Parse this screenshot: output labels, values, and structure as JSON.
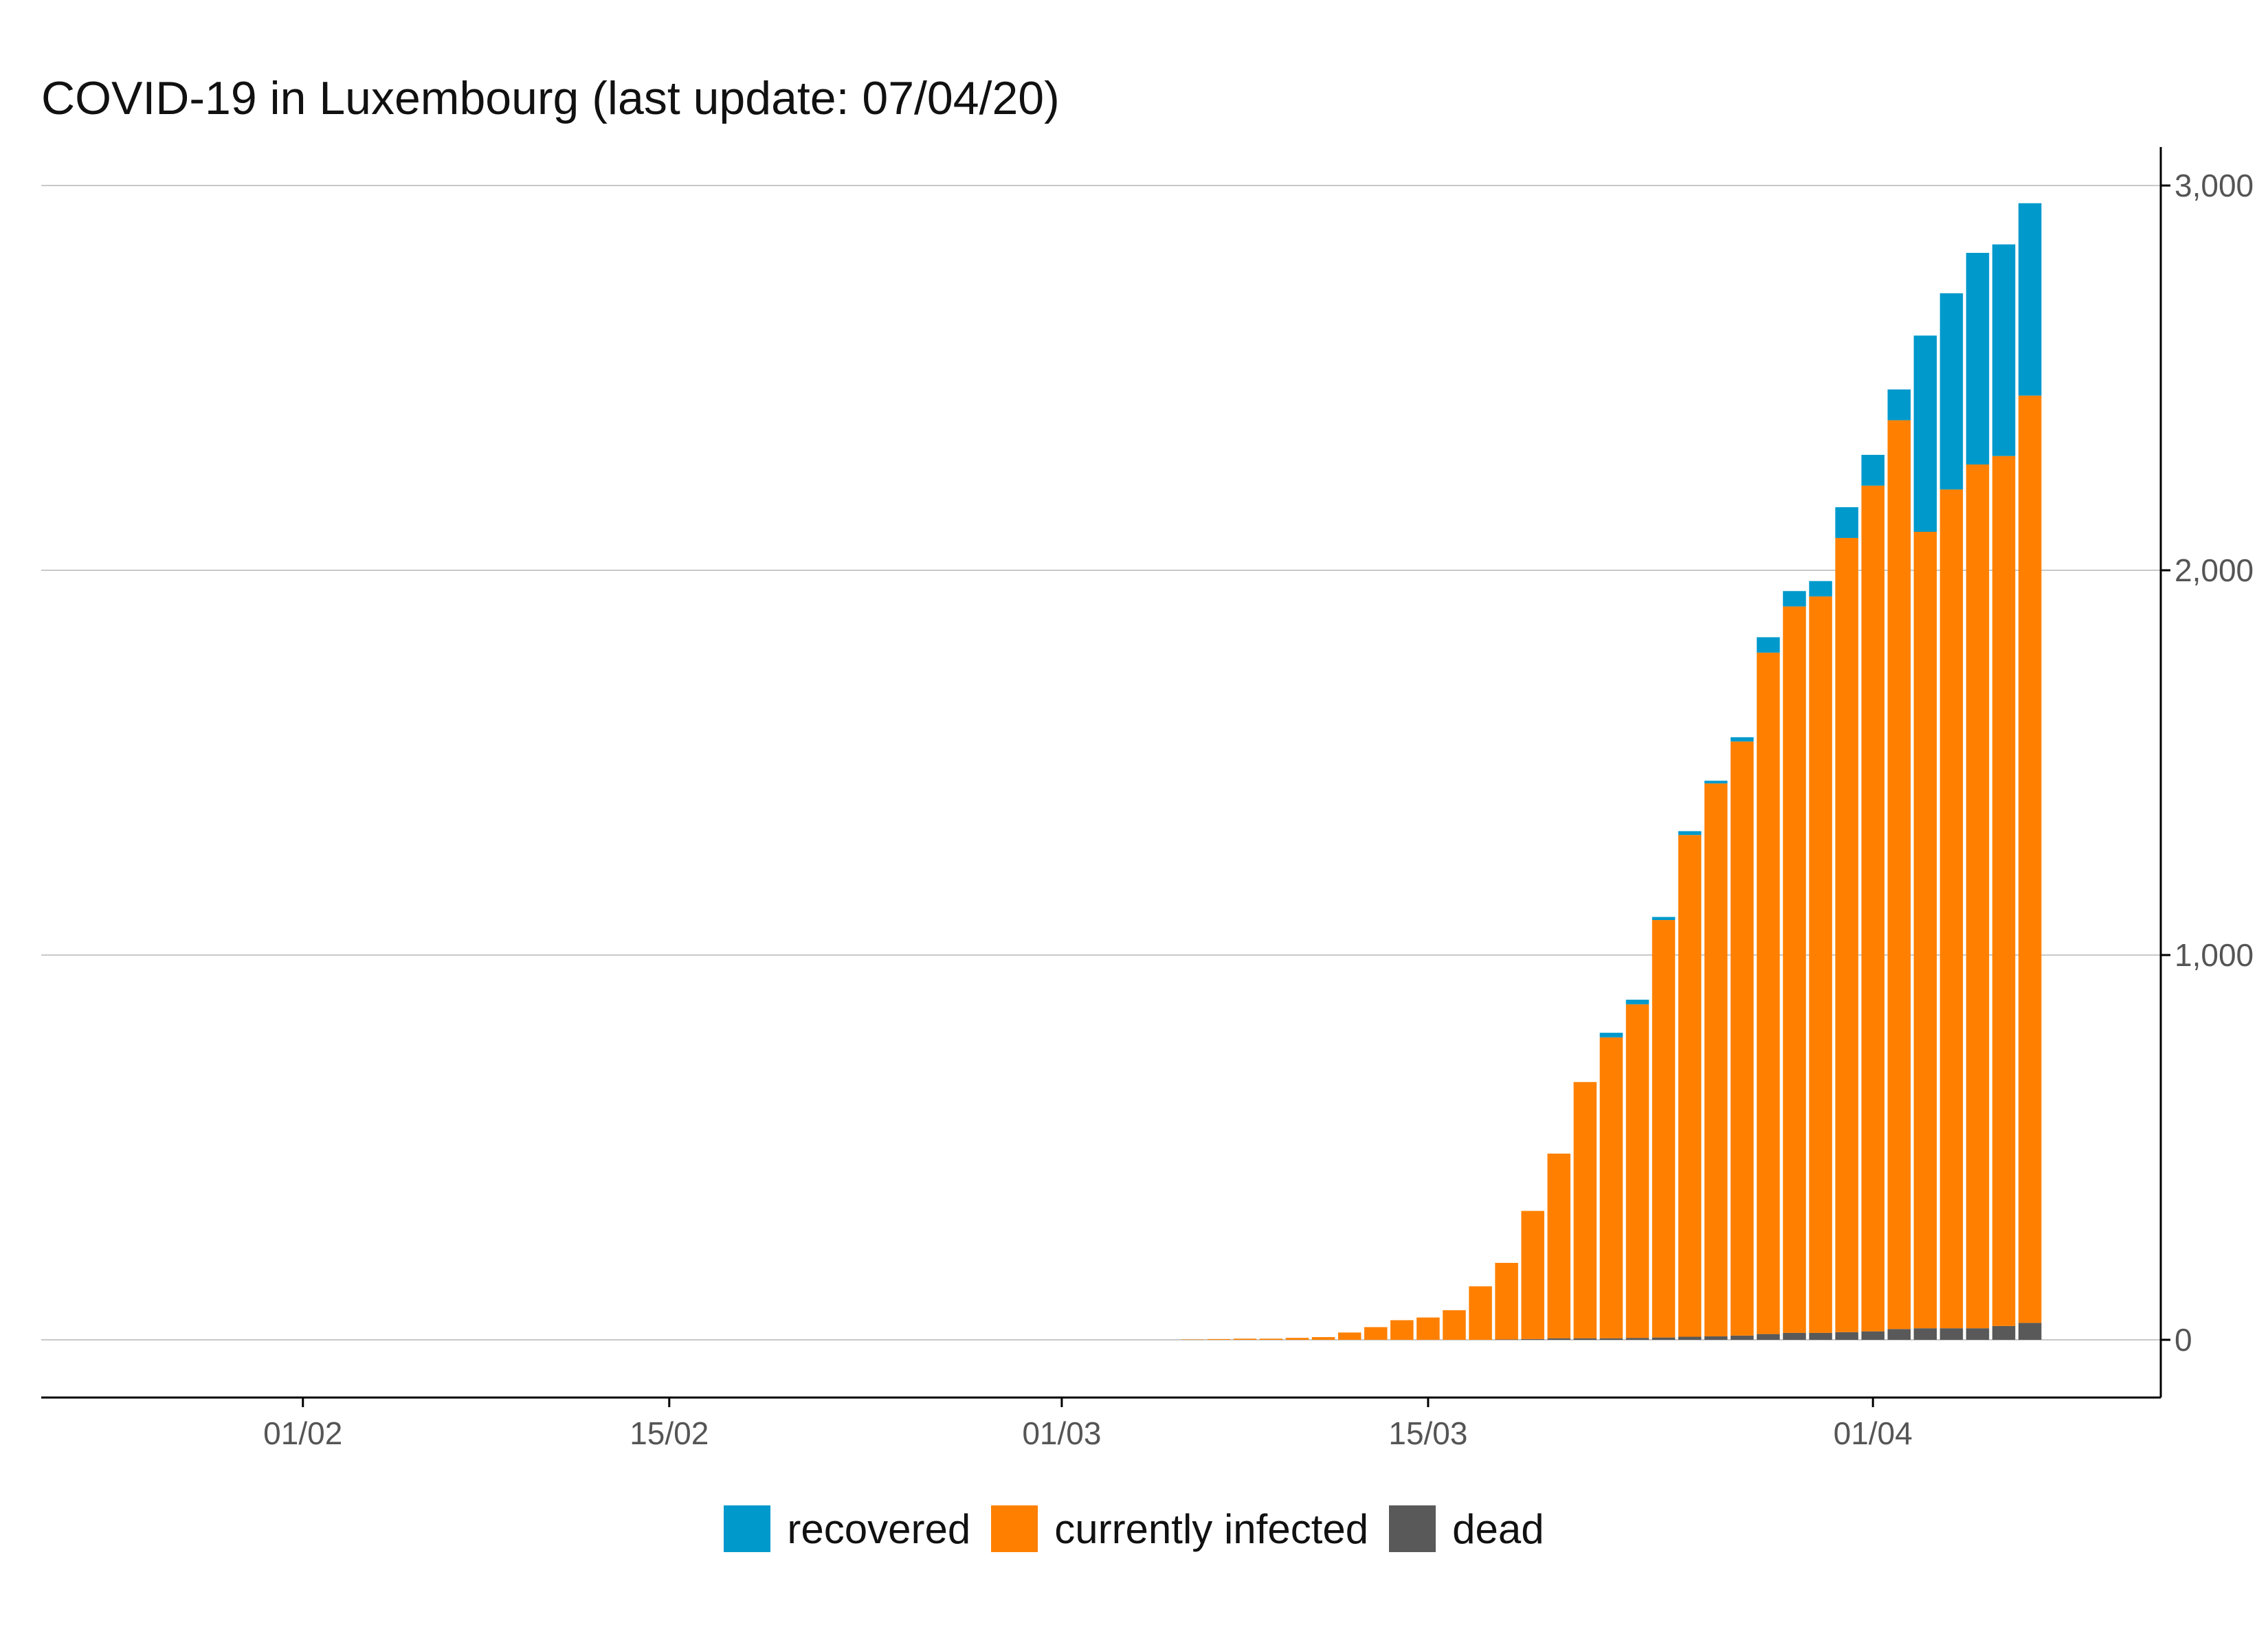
{
  "chart_data": {
    "type": "bar",
    "stacked": true,
    "title": "COVID-19 in Luxembourg (last update: 07/04/20)",
    "xlabel": "",
    "ylabel": "",
    "y_axis_side": "right",
    "x_range": [
      "2020-01-22",
      "2020-04-12"
    ],
    "ylim": [
      -150,
      3100
    ],
    "y_ticks": [
      0,
      1000,
      2000,
      3000
    ],
    "y_tick_labels": [
      "0",
      "1,000",
      "2,000",
      "3,000"
    ],
    "x_ticks": [
      "2020-02-01",
      "2020-02-15",
      "2020-03-01",
      "2020-03-15",
      "2020-04-01"
    ],
    "x_tick_labels": [
      "01/02",
      "15/02",
      "01/03",
      "15/03",
      "01/04"
    ],
    "grid": "horizontal major",
    "legend_position": "bottom",
    "categories": [
      "2020-03-06",
      "2020-03-07",
      "2020-03-08",
      "2020-03-09",
      "2020-03-10",
      "2020-03-11",
      "2020-03-12",
      "2020-03-13",
      "2020-03-14",
      "2020-03-15",
      "2020-03-16",
      "2020-03-17",
      "2020-03-18",
      "2020-03-19",
      "2020-03-20",
      "2020-03-21",
      "2020-03-22",
      "2020-03-23",
      "2020-03-24",
      "2020-03-25",
      "2020-03-26",
      "2020-03-27",
      "2020-03-28",
      "2020-03-29",
      "2020-03-30",
      "2020-03-31",
      "2020-04-01",
      "2020-04-02",
      "2020-04-03",
      "2020-04-04",
      "2020-04-05",
      "2020-04-06",
      "2020-04-07"
    ],
    "series": [
      {
        "name": "dead",
        "color": "#595959",
        "values": [
          0,
          0,
          0,
          0,
          0,
          0,
          0,
          0,
          0,
          0,
          0,
          0,
          1,
          2,
          4,
          4,
          4,
          5,
          6,
          8,
          9,
          11,
          15,
          18,
          18,
          20,
          22,
          28,
          30,
          30,
          30,
          36,
          44
        ]
      },
      {
        "name": "currently infected",
        "color": "#ff8000",
        "values": [
          1,
          2,
          3,
          3,
          5,
          7,
          19,
          33,
          51,
          58,
          77,
          139,
          199,
          333,
          480,
          666,
          782,
          867,
          1085,
          1304,
          1437,
          1544,
          1771,
          1888,
          1914,
          2064,
          2198,
          2362,
          2070,
          2180,
          2245,
          2261,
          2410
        ]
      },
      {
        "name": "recovered",
        "color": "#0099cc",
        "values": [
          0,
          0,
          0,
          0,
          0,
          0,
          0,
          0,
          0,
          0,
          0,
          0,
          0,
          0,
          0,
          0,
          12,
          12,
          8,
          10,
          7,
          11,
          40,
          40,
          40,
          80,
          80,
          80,
          510,
          510,
          550,
          550,
          500
        ]
      }
    ]
  }
}
